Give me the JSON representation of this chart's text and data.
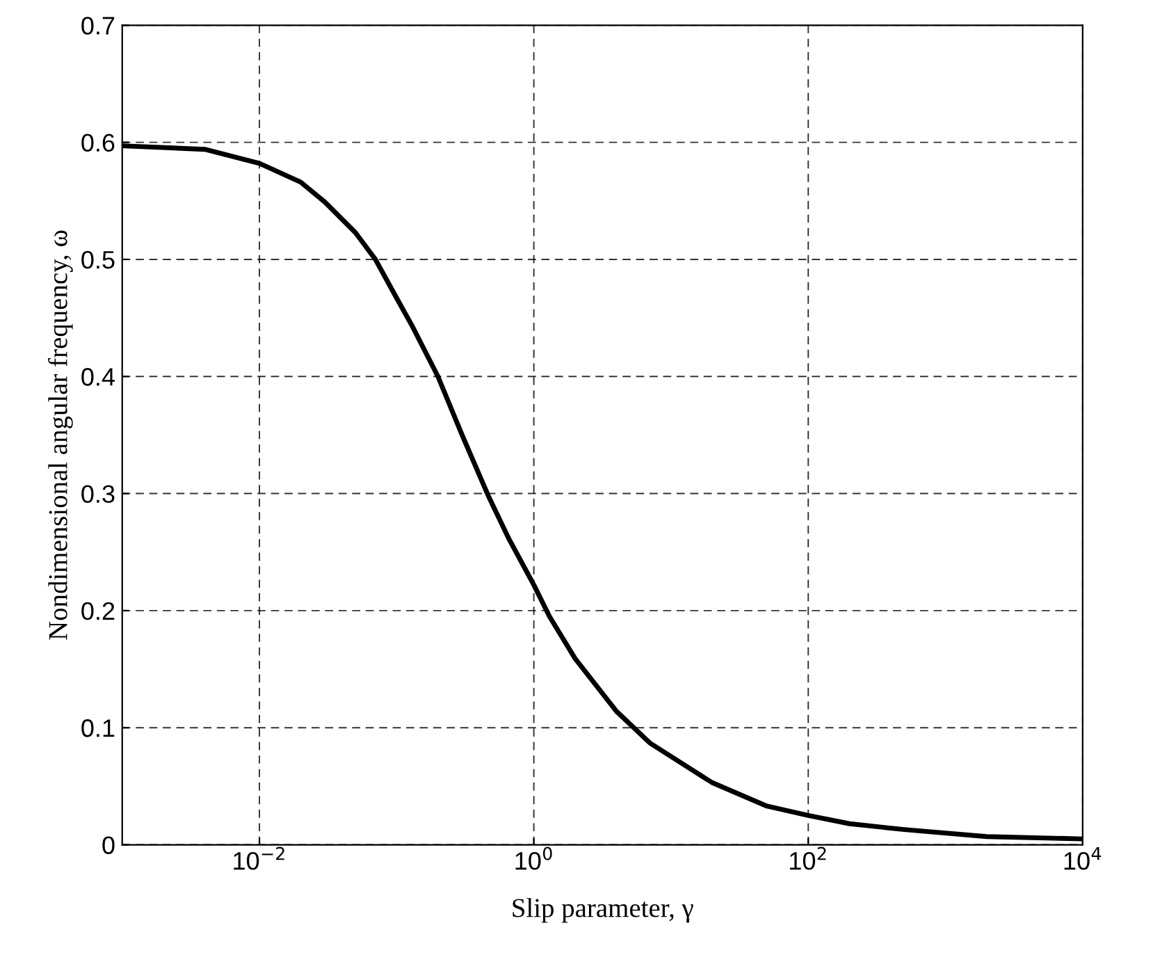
{
  "chart_data": {
    "type": "line",
    "xlabel": "Slip parameter, γ",
    "ylabel": "Nondimensional angular frequency, ω",
    "log": "x",
    "xlim": [
      0.001,
      10000
    ],
    "xticks": [
      {
        "value": 0.01,
        "label": "10$^{−2}$"
      },
      {
        "value": 1,
        "label": "10$^{0}$"
      },
      {
        "value": 100,
        "label": "10$^{2}$"
      },
      {
        "value": 10000,
        "label": "10$^{4}$"
      }
    ],
    "ylim": [
      0,
      0.7
    ],
    "yticks": [
      0,
      0.1,
      0.2,
      0.3,
      0.4,
      0.5,
      0.6,
      0.7
    ],
    "grid": true,
    "marker": "none",
    "line_style": "solid",
    "series": [
      {
        "color": "#000000",
        "x": [
          0.001,
          0.004,
          0.01,
          0.02,
          0.03,
          0.05,
          0.07,
          0.1,
          0.13,
          0.2,
          0.3,
          0.47,
          0.66,
          1,
          1.3,
          2,
          4,
          7,
          20,
          50,
          100,
          200,
          500,
          2000,
          10000
        ],
        "values": [
          0.597,
          0.594,
          0.582,
          0.566,
          0.549,
          0.523,
          0.5,
          0.467,
          0.443,
          0.4,
          0.35,
          0.297,
          0.261,
          0.222,
          0.195,
          0.159,
          0.114,
          0.087,
          0.053,
          0.033,
          0.025,
          0.018,
          0.013,
          0.007,
          0.005
        ]
      }
    ]
  }
}
